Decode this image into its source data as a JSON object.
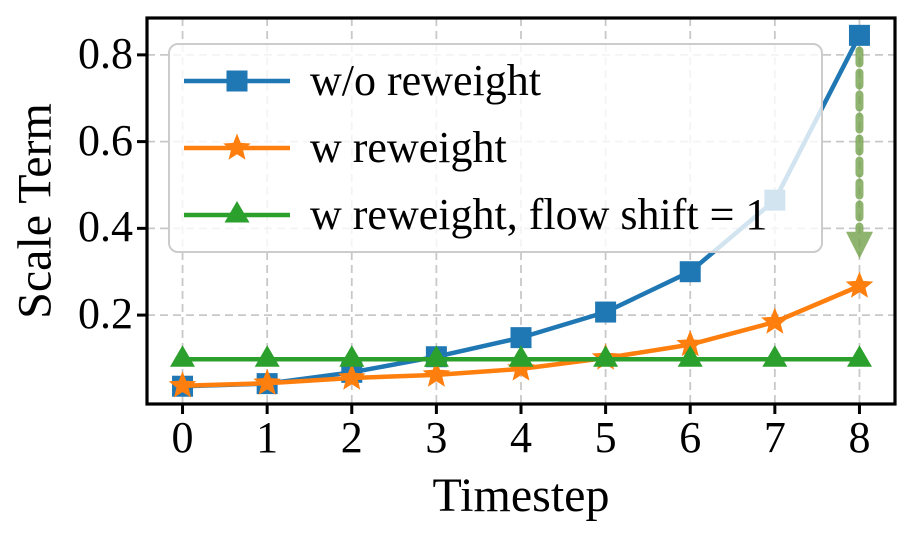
{
  "chart_data": {
    "type": "line",
    "title": "",
    "xlabel": "Timestep",
    "ylabel": "Scale Term",
    "x": [
      0,
      1,
      2,
      3,
      4,
      5,
      6,
      7,
      8
    ],
    "xtick_labels": [
      "0",
      "1",
      "2",
      "3",
      "4",
      "5",
      "6",
      "7",
      "8"
    ],
    "ytick_values": [
      0.2,
      0.4,
      0.6,
      0.8
    ],
    "ytick_labels": [
      "0.2",
      "0.4",
      "0.6",
      "0.8"
    ],
    "xlim": [
      -0.42,
      8.42
    ],
    "ylim": [
      -0.005,
      0.885
    ],
    "grid": true,
    "grid_style": "dashed",
    "legend_position": "upper left",
    "series": [
      {
        "name": "wo-reweight",
        "label": "w/o reweight",
        "color": "#1f77b4",
        "marker": "square",
        "values": [
          0.036,
          0.042,
          0.068,
          0.104,
          0.148,
          0.207,
          0.3,
          0.465,
          0.845
        ]
      },
      {
        "name": "w-reweight",
        "label": "w reweight",
        "color": "#ff7f0e",
        "marker": "star",
        "values": [
          0.037,
          0.043,
          0.055,
          0.062,
          0.076,
          0.101,
          0.132,
          0.184,
          0.267
        ]
      },
      {
        "name": "w-reweight-flow-shift-1",
        "label": "w reweight, flow shift = 1",
        "color": "#2ca02c",
        "marker": "triangle",
        "values": [
          0.098,
          0.098,
          0.098,
          0.098,
          0.098,
          0.098,
          0.098,
          0.098,
          0.098
        ]
      }
    ],
    "annotation_arrow": {
      "x": 8,
      "y_from": 0.81,
      "y_to": 0.33,
      "color": "#74a24c",
      "style": "dashed-down-arrow"
    }
  }
}
